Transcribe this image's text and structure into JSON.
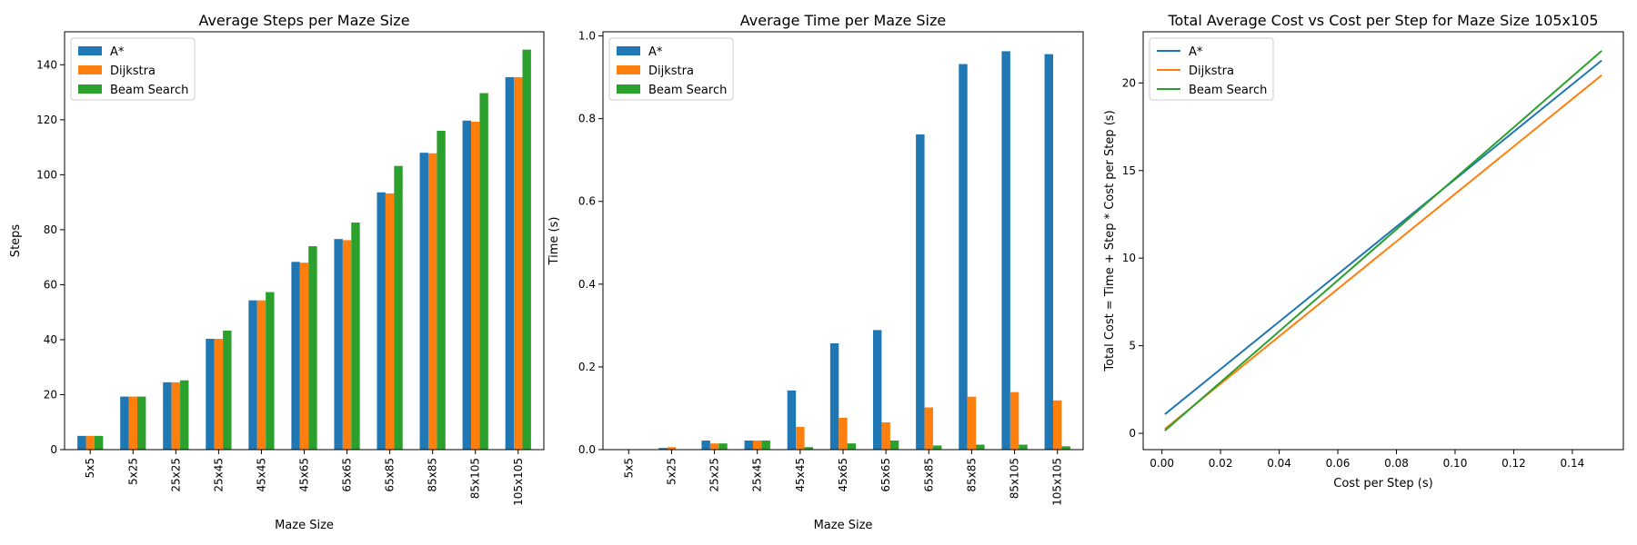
{
  "chart_data": [
    {
      "type": "bar",
      "title": "Average Steps per Maze Size",
      "xlabel": "Maze Size",
      "ylabel": "Steps",
      "categories": [
        "5x5",
        "5x25",
        "25x25",
        "25x45",
        "45x45",
        "45x65",
        "65x65",
        "65x85",
        "85x85",
        "85x105",
        "105x105"
      ],
      "series": [
        {
          "name": "A*",
          "values": [
            5,
            19.3,
            24.5,
            40.3,
            54.3,
            68.3,
            76.6,
            93.6,
            108,
            119.7,
            135.5
          ]
        },
        {
          "name": "Dijkstra",
          "values": [
            5,
            19.3,
            24.5,
            40.3,
            54.3,
            68,
            76.2,
            93.2,
            107.8,
            119.3,
            135.5
          ]
        },
        {
          "name": "Beam Search",
          "values": [
            5,
            19.3,
            25.2,
            43.3,
            57.3,
            74,
            82.6,
            103.2,
            116,
            129.7,
            145.5
          ]
        }
      ],
      "ylim": [
        0,
        152
      ],
      "yticks": [
        0,
        20,
        40,
        60,
        80,
        100,
        120,
        140
      ],
      "legend": "top-left",
      "grid": false
    },
    {
      "type": "bar",
      "title": "Average Time per Maze Size",
      "xlabel": "Maze Size",
      "ylabel": "Time (s)",
      "categories": [
        "5x5",
        "5x25",
        "25x25",
        "25x45",
        "45x45",
        "45x65",
        "65x65",
        "65x85",
        "85x85",
        "85x105",
        "105x105"
      ],
      "series": [
        {
          "name": "A*",
          "values": [
            0.0005,
            0.004,
            0.022,
            0.022,
            0.143,
            0.257,
            0.289,
            0.762,
            0.932,
            0.963,
            0.956
          ]
        },
        {
          "name": "Dijkstra",
          "values": [
            0.0003,
            0.006,
            0.015,
            0.022,
            0.055,
            0.077,
            0.066,
            0.102,
            0.128,
            0.139,
            0.119
          ]
        },
        {
          "name": "Beam Search",
          "values": [
            0.0002,
            0.001,
            0.015,
            0.022,
            0.006,
            0.015,
            0.022,
            0.01,
            0.012,
            0.012,
            0.008
          ]
        }
      ],
      "ylim": [
        0,
        1.01
      ],
      "yticks": [
        0.0,
        0.2,
        0.4,
        0.6,
        0.8,
        1.0
      ],
      "legend": "top-left",
      "grid": false
    },
    {
      "type": "line",
      "title": "Total Average Cost vs Cost per Step for Maze Size 105x105",
      "xlabel": "Cost per Step (s)",
      "ylabel": "Total Cost = Time + Step * Cost per Step (s)",
      "series": [
        {
          "name": "A*",
          "x": [
            0.001,
            0.15
          ],
          "y": [
            1.09,
            21.28
          ]
        },
        {
          "name": "Dijkstra",
          "x": [
            0.001,
            0.15
          ],
          "y": [
            0.25,
            20.44
          ]
        },
        {
          "name": "Beam Search",
          "x": [
            0.001,
            0.15
          ],
          "y": [
            0.15,
            21.83
          ]
        }
      ],
      "xlim": [
        -0.0064,
        0.1574
      ],
      "ylim": [
        -0.93,
        22.92
      ],
      "xticks": [
        0.0,
        0.02,
        0.04,
        0.06,
        0.08,
        0.1,
        0.12,
        0.14
      ],
      "yticks": [
        0,
        5,
        10,
        15,
        20
      ],
      "legend": "top-left",
      "grid": false
    }
  ],
  "colors": {
    "A*": "#1f77b4",
    "Dijkstra": "#ff7f0e",
    "Beam Search": "#2ca02c"
  }
}
